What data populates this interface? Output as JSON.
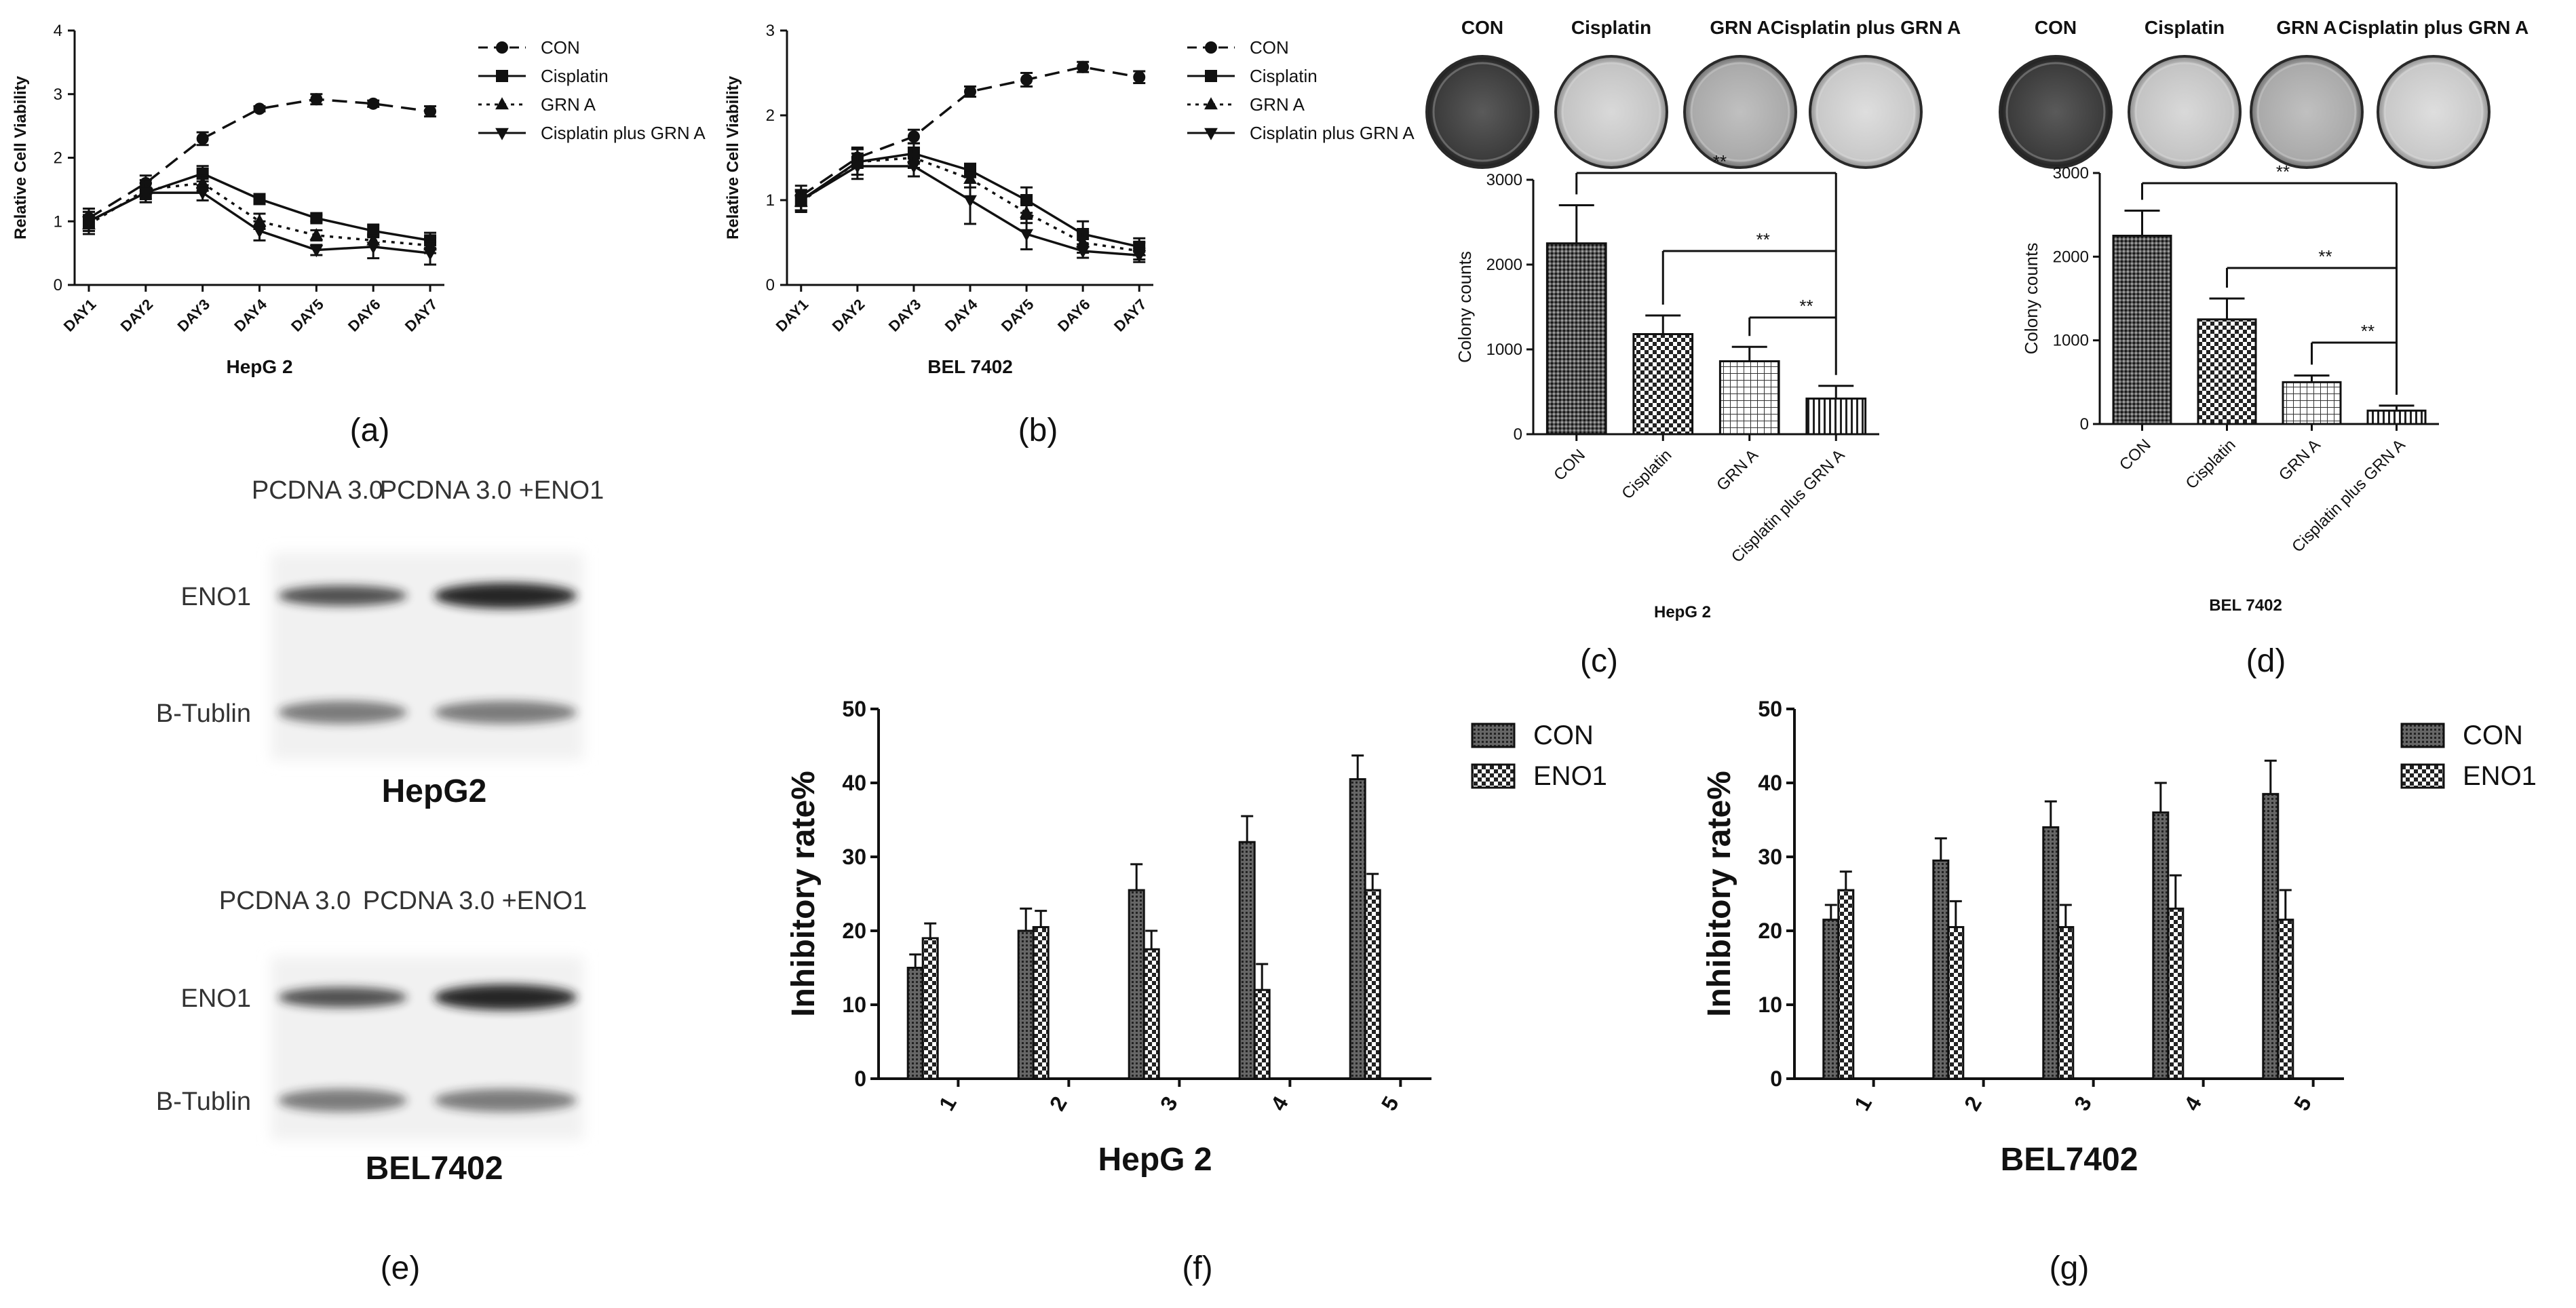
{
  "colors": {
    "ink": "#111111",
    "band": "#1a1a1a",
    "paper": "#ffffff"
  },
  "chart_data": [
    {
      "type": "line",
      "panel": "(a)",
      "title": "HepG 2",
      "xlabel": "HepG 2",
      "ylabel": "Relative Cell Viability",
      "categories": [
        "DAY1",
        "DAY2",
        "DAY3",
        "DAY4",
        "DAY5",
        "DAY6",
        "DAY7"
      ],
      "ylim": [
        0,
        4
      ],
      "yticks": [
        "0",
        "1",
        "2",
        "3",
        "4"
      ],
      "series": [
        {
          "name": "CON",
          "marker": "circle",
          "dash": "dashed",
          "values": [
            1.05,
            1.6,
            2.3,
            2.77,
            2.92,
            2.85,
            2.73
          ],
          "errors": [
            0.15,
            0.12,
            0.1,
            0.04,
            0.08,
            0.05,
            0.08
          ]
        },
        {
          "name": "Cisplatin",
          "marker": "square",
          "dash": "solid",
          "values": [
            1.0,
            1.45,
            1.75,
            1.35,
            1.05,
            0.85,
            0.7
          ],
          "errors": [
            0.15,
            0.15,
            0.12,
            0.07,
            0.05,
            0.1,
            0.12
          ]
        },
        {
          "name": "GRN A",
          "marker": "triangle-up",
          "dash": "dotted",
          "values": [
            0.95,
            1.5,
            1.6,
            1.0,
            0.78,
            0.7,
            0.62
          ],
          "errors": [
            0.15,
            0.15,
            0.12,
            0.12,
            0.08,
            0.1,
            0.12
          ]
        },
        {
          "name": "Cisplatin plus GRN A",
          "marker": "triangle-down",
          "dash": "solid",
          "values": [
            1.0,
            1.45,
            1.45,
            0.85,
            0.55,
            0.6,
            0.5
          ],
          "errors": [
            0.15,
            0.15,
            0.12,
            0.15,
            0.08,
            0.18,
            0.18
          ]
        }
      ],
      "legend": "right"
    },
    {
      "type": "line",
      "panel": "(b)",
      "title": "BEL 7402",
      "xlabel": "BEL 7402",
      "ylabel": "Relative Cell Viability",
      "categories": [
        "DAY1",
        "DAY2",
        "DAY3",
        "DAY4",
        "DAY5",
        "DAY6",
        "DAY7"
      ],
      "ylim": [
        0,
        3
      ],
      "yticks": [
        "0",
        "1",
        "2",
        "3"
      ],
      "series": [
        {
          "name": "CON",
          "marker": "circle",
          "dash": "dashed",
          "values": [
            1.05,
            1.5,
            1.75,
            2.28,
            2.42,
            2.57,
            2.45
          ],
          "errors": [
            0.12,
            0.12,
            0.08,
            0.06,
            0.08,
            0.06,
            0.07
          ]
        },
        {
          "name": "Cisplatin",
          "marker": "square",
          "dash": "solid",
          "values": [
            1.0,
            1.45,
            1.55,
            1.35,
            1.0,
            0.6,
            0.45
          ],
          "errors": [
            0.12,
            0.15,
            0.12,
            0.08,
            0.15,
            0.15,
            0.1
          ]
        },
        {
          "name": "GRN A",
          "marker": "triangle-up",
          "dash": "dotted",
          "values": [
            0.98,
            1.45,
            1.5,
            1.25,
            0.85,
            0.5,
            0.4
          ],
          "errors": [
            0.12,
            0.15,
            0.12,
            0.1,
            0.12,
            0.12,
            0.1
          ]
        },
        {
          "name": "Cisplatin plus GRN A",
          "marker": "triangle-down",
          "dash": "solid",
          "values": [
            1.0,
            1.4,
            1.4,
            1.0,
            0.6,
            0.4,
            0.35
          ],
          "errors": [
            0.12,
            0.15,
            0.12,
            0.28,
            0.18,
            0.08,
            0.08
          ]
        }
      ],
      "legend": "right"
    },
    {
      "type": "bar",
      "panel": "(c)",
      "title": "HepG 2",
      "xlabel": "HepG 2",
      "ylabel": "Colony counts",
      "plate_labels": [
        "CON",
        "Cisplatin",
        "GRN A",
        "Cisplatin plus GRN A"
      ],
      "categories": [
        "CON",
        "Cisplatin",
        "GRN A",
        "Cisplatin plus GRN A"
      ],
      "values": [
        2250,
        1180,
        860,
        420
      ],
      "errors": [
        450,
        220,
        170,
        150
      ],
      "ylim": [
        0,
        3000
      ],
      "yticks": [
        "0",
        "1000",
        "2000",
        "3000"
      ],
      "significance": [
        {
          "from": "CON",
          "to": "Cisplatin plus GRN A",
          "label": "**"
        },
        {
          "from": "Cisplatin",
          "to": "Cisplatin plus GRN A",
          "label": "**"
        },
        {
          "from": "GRN A",
          "to": "Cisplatin plus GRN A",
          "label": "**"
        }
      ]
    },
    {
      "type": "bar",
      "panel": "(d)",
      "title": "BEL 7402",
      "xlabel": "BEL 7402",
      "ylabel": "Colony counts",
      "plate_labels": [
        "CON",
        "Cisplatin",
        "GRN A",
        "Cisplatin plus GRN A"
      ],
      "categories": [
        "CON",
        "Cisplatin",
        "GRN A",
        "Cisplatin plus GRN A"
      ],
      "values": [
        2250,
        1250,
        500,
        160
      ],
      "errors": [
        300,
        250,
        80,
        60
      ],
      "ylim": [
        0,
        3000
      ],
      "yticks": [
        "0",
        "1000",
        "2000",
        "3000"
      ],
      "significance": [
        {
          "from": "CON",
          "to": "Cisplatin plus GRN A",
          "label": "**"
        },
        {
          "from": "Cisplatin",
          "to": "Cisplatin plus GRN A",
          "label": "**"
        },
        {
          "from": "GRN A",
          "to": "Cisplatin plus GRN A",
          "label": "**"
        }
      ]
    },
    {
      "type": "bar",
      "panel": "(f)",
      "title": "HepG 2",
      "xlabel": "HepG 2",
      "ylabel": "Inhibitory rate%",
      "categories": [
        "1",
        "2",
        "3",
        "4",
        "5"
      ],
      "series": [
        {
          "name": "CON",
          "values": [
            15,
            20,
            25.5,
            32,
            40.5
          ],
          "errors": [
            1.8,
            3,
            3.5,
            3.5,
            3.2
          ]
        },
        {
          "name": "ENO1",
          "values": [
            19,
            20.5,
            17.5,
            12,
            25.5
          ],
          "errors": [
            2,
            2.2,
            2.5,
            3.5,
            2.2
          ]
        }
      ],
      "ylim": [
        0,
        50
      ],
      "yticks": [
        "0",
        "10",
        "20",
        "30",
        "40",
        "50"
      ],
      "legend": "top-right"
    },
    {
      "type": "bar",
      "panel": "(g)",
      "title": "BEL7402",
      "xlabel": "BEL7402",
      "ylabel": "Inhibitory rate%",
      "categories": [
        "1",
        "2",
        "3",
        "4",
        "5"
      ],
      "series": [
        {
          "name": "CON",
          "values": [
            21.5,
            29.5,
            34,
            36,
            38.5
          ],
          "errors": [
            2,
            3,
            3.5,
            4,
            4.5
          ]
        },
        {
          "name": "ENO1",
          "values": [
            25.5,
            20.5,
            20.5,
            23,
            21.5
          ],
          "errors": [
            2.5,
            3.5,
            3,
            4.5,
            4
          ]
        }
      ],
      "ylim": [
        0,
        50
      ],
      "yticks": [
        "0",
        "10",
        "20",
        "30",
        "40",
        "50"
      ],
      "legend": "top-right"
    }
  ],
  "western_blot": {
    "panel": "(e)",
    "blocks": [
      {
        "cell": "HepG2",
        "lanes": [
          "PCDNA 3.0",
          "PCDNA 3.0 +ENO1"
        ],
        "rows": [
          "ENO1",
          "B-Tublin"
        ]
      },
      {
        "cell": "BEL7402",
        "lanes": [
          "PCDNA 3.0",
          "PCDNA 3.0 +ENO1"
        ],
        "rows": [
          "ENO1",
          "B-Tublin"
        ]
      }
    ]
  }
}
